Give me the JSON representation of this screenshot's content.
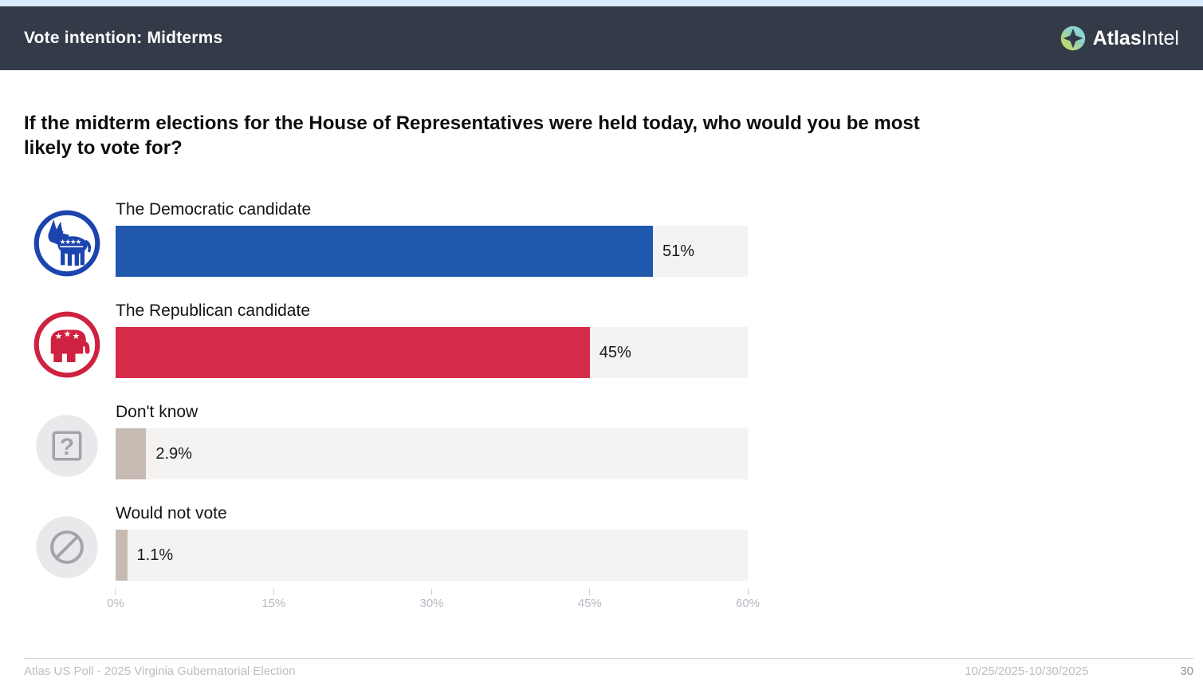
{
  "header": {
    "title": "Vote intention: Midterms",
    "brand_bold": "Atlas",
    "brand_light": "Intel"
  },
  "question": "If the midterm elections for the House of Representatives were held today, who would you be most likely to vote for?",
  "chart_data": {
    "type": "bar",
    "orientation": "horizontal",
    "title": "If the midterm elections for the House of Representatives were held today, who would you be most likely to vote for?",
    "categories": [
      "The Democratic candidate",
      "The Republican candidate",
      "Don't know",
      "Would not vote"
    ],
    "values": [
      51,
      45,
      2.9,
      1.1
    ],
    "value_labels": [
      "51%",
      "45%",
      "2.9%",
      "1.1%"
    ],
    "bar_colors": [
      "#2058ae",
      "#d62b4b",
      "#c7bab2",
      "#c7bab2"
    ],
    "track_color": "#f4f3f1",
    "icons": [
      "democrat-donkey",
      "republican-elephant",
      "question-mark",
      "no-vote"
    ],
    "xlim": [
      0,
      60
    ],
    "x_ticks": [
      "0%",
      "15%",
      "30%",
      "45%",
      "60%"
    ],
    "x_tick_values": [
      0,
      15,
      30,
      45,
      60
    ],
    "grid": false,
    "legend": false
  },
  "footer": {
    "source": "Atlas US Poll - 2025 Virginia Gubernatorial Election",
    "date_range": "10/25/2025-10/30/2025",
    "page": "30"
  }
}
